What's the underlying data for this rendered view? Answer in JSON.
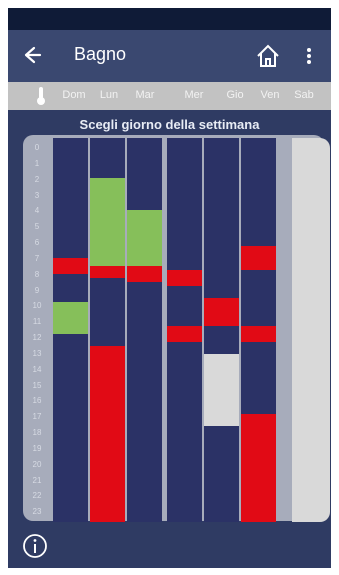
{
  "appbar": {
    "title": "Bagno"
  },
  "days": [
    "Dom",
    "Lun",
    "Mar",
    "Mer",
    "Gio",
    "Ven",
    "Sab"
  ],
  "hint": "Scegli giorno della settimana",
  "hours": [
    "0",
    "1",
    "2",
    "3",
    "4",
    "5",
    "6",
    "7",
    "8",
    "9",
    "10",
    "11",
    "12",
    "13",
    "14",
    "15",
    "16",
    "17",
    "18",
    "19",
    "20",
    "21",
    "22",
    "23"
  ],
  "colors": {
    "base": "#2b3266",
    "comfort": "#86bf5a",
    "heat": "#e10a15",
    "off": "#d9d9d9",
    "sab": "#d9d9d9"
  },
  "schedule": [
    {
      "day": "Dom",
      "blocks": [
        {
          "from": 7.5,
          "to": 8.5,
          "mode": "heat"
        },
        {
          "from": 10.25,
          "to": 12.25,
          "mode": "comfort"
        }
      ]
    },
    {
      "day": "Lun",
      "blocks": [
        {
          "from": 2.5,
          "to": 8.0,
          "mode": "comfort"
        },
        {
          "from": 8.0,
          "to": 8.75,
          "mode": "heat"
        },
        {
          "from": 13.0,
          "to": 24.0,
          "mode": "heat"
        }
      ]
    },
    {
      "day": "Mar",
      "blocks": [
        {
          "from": 4.5,
          "to": 8.0,
          "mode": "comfort"
        },
        {
          "from": 8.0,
          "to": 9.0,
          "mode": "heat"
        }
      ]
    },
    {
      "day": "Mer",
      "blocks": [
        {
          "from": 8.25,
          "to": 9.25,
          "mode": "heat"
        },
        {
          "from": 11.75,
          "to": 12.75,
          "mode": "heat"
        }
      ]
    },
    {
      "day": "Gio",
      "blocks": [
        {
          "from": 10.0,
          "to": 11.75,
          "mode": "heat"
        },
        {
          "from": 13.5,
          "to": 18.0,
          "mode": "off"
        }
      ]
    },
    {
      "day": "Ven",
      "blocks": [
        {
          "from": 6.75,
          "to": 8.25,
          "mode": "heat"
        },
        {
          "from": 11.75,
          "to": 12.75,
          "mode": "heat"
        },
        {
          "from": 17.25,
          "to": 24.0,
          "mode": "heat"
        }
      ]
    }
  ]
}
